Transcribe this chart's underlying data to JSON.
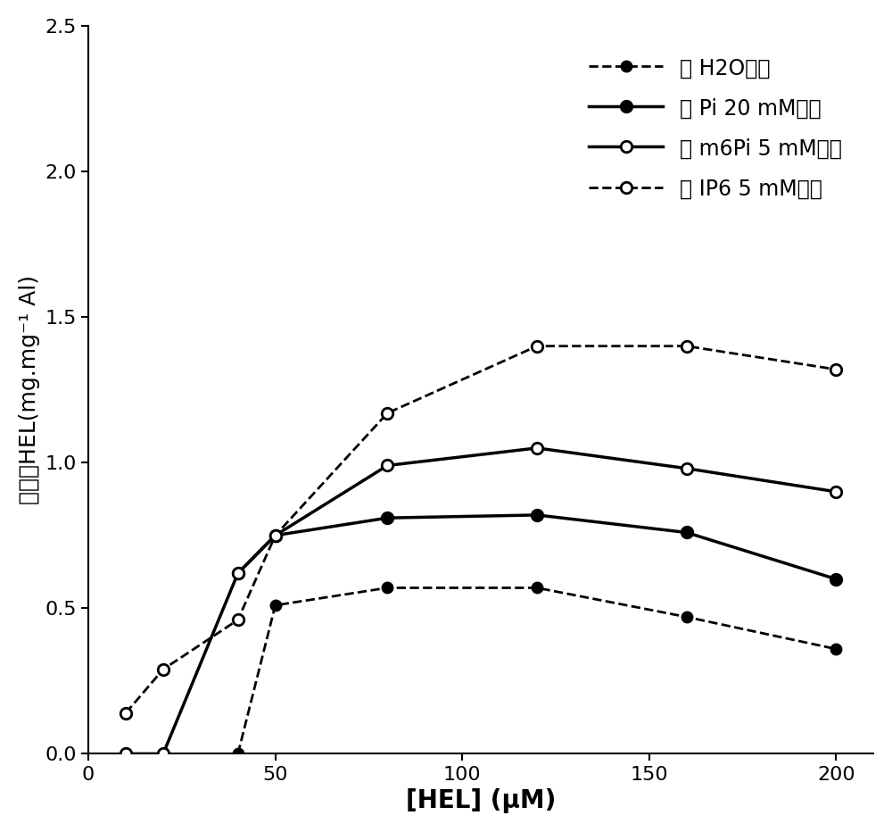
{
  "title": "",
  "xlabel": "[HEL] (μM)",
  "ylabel": "吸附的HEL(mg.mg⁻¹ Al)",
  "xlim": [
    0,
    210
  ],
  "ylim": [
    0.0,
    2.5
  ],
  "xticks": [
    0,
    50,
    100,
    150,
    200
  ],
  "yticks": [
    0.0,
    0.5,
    1.0,
    1.5,
    2.0,
    2.5
  ],
  "series": [
    {
      "label": "用 H2O处理",
      "x": [
        10,
        20,
        40,
        50,
        80,
        120,
        160,
        200
      ],
      "y": [
        0.0,
        0.0,
        0.0,
        0.51,
        0.57,
        0.57,
        0.47,
        0.36
      ],
      "color": "#000000",
      "linewidth": 2.0,
      "linestyle": "--",
      "marker": "o",
      "markersize": 8,
      "markerfacecolor": "#000000",
      "markeredgecolor": "#000000",
      "zorder": 2
    },
    {
      "label": "用 Pi 20 mM处理",
      "x": [
        10,
        20,
        40,
        50,
        80,
        120,
        160,
        200
      ],
      "y": [
        0.0,
        0.0,
        0.62,
        0.75,
        0.81,
        0.82,
        0.76,
        0.6
      ],
      "color": "#000000",
      "linewidth": 2.5,
      "linestyle": "-",
      "marker": "o",
      "markersize": 9,
      "markerfacecolor": "#000000",
      "markeredgecolor": "#000000",
      "zorder": 3
    },
    {
      "label": "用 m6Pi 5 mM处理",
      "x": [
        10,
        20,
        40,
        50,
        80,
        120,
        160,
        200
      ],
      "y": [
        0.0,
        0.0,
        0.62,
        0.75,
        0.99,
        1.05,
        0.98,
        0.9
      ],
      "color": "#000000",
      "linewidth": 2.5,
      "linestyle": "-",
      "marker": "o",
      "markersize": 9,
      "markerfacecolor": "#ffffff",
      "markeredgecolor": "#000000",
      "zorder": 4
    },
    {
      "label": "用 IP6 5 mM处理",
      "x": [
        10,
        20,
        40,
        50,
        80,
        120,
        160,
        200
      ],
      "y": [
        0.14,
        0.29,
        0.46,
        0.75,
        1.17,
        1.4,
        1.4,
        1.32
      ],
      "color": "#000000",
      "linewidth": 2.0,
      "linestyle": "--",
      "marker": "o",
      "markersize": 9,
      "markerfacecolor": "#ffffff",
      "markeredgecolor": "#000000",
      "zorder": 5
    }
  ],
  "legend_fontsize": 17,
  "tick_fontsize": 16,
  "xlabel_fontsize": 20,
  "ylabel_fontsize": 18,
  "figsize": [
    10.0,
    9.32
  ],
  "dpi": 100
}
